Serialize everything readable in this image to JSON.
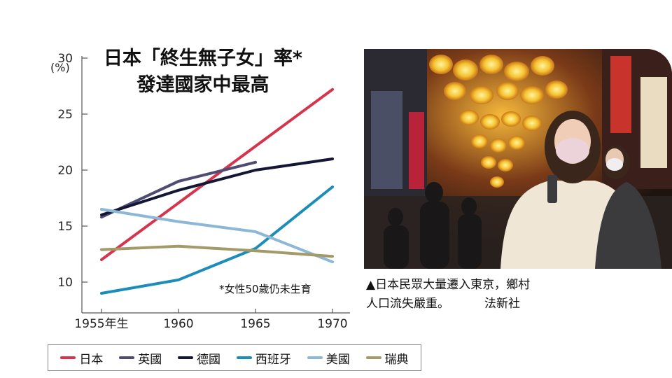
{
  "title": {
    "line1": "日本「終生無子女」率*",
    "line2": "發達國家中最高"
  },
  "unit_label": "(%)",
  "footnote": "*女性50歲仍未生育",
  "photo_caption": {
    "text": "▲日本民眾大量遷入東京，鄉村人口流失嚴重。",
    "line1": "▲日本民眾大量遷入東京，鄉村",
    "line2": "人口流失嚴重。",
    "credit": "法新社"
  },
  "chart_data": {
    "type": "line",
    "title": "日本「終生無子女」率*　發達國家中最高",
    "ylabel": "(%)",
    "xlabel": "",
    "x": [
      1955,
      1960,
      1965,
      1970
    ],
    "x_tick_labels": [
      "1955年生",
      "1960",
      "1965",
      "1970"
    ],
    "xlim": [
      1955,
      1970
    ],
    "ylim": [
      7.5,
      30
    ],
    "y_ticks": [
      10,
      15,
      20,
      25,
      30
    ],
    "grid": false,
    "legend_position": "bottom",
    "series": [
      {
        "name": "日本",
        "color": "#d6334c",
        "points": [
          [
            1955,
            12.0
          ],
          [
            1970,
            27.2
          ]
        ]
      },
      {
        "name": "英國",
        "color": "#4f4b72",
        "points": [
          [
            1955,
            15.8
          ],
          [
            1960,
            19.0
          ],
          [
            1965,
            20.7
          ]
        ]
      },
      {
        "name": "德國",
        "color": "#131634",
        "points": [
          [
            1955,
            16.0
          ],
          [
            1960,
            18.2
          ],
          [
            1965,
            20.0
          ],
          [
            1970,
            21.0
          ]
        ]
      },
      {
        "name": "西班牙",
        "color": "#1c8db8",
        "points": [
          [
            1955,
            9.0
          ],
          [
            1960,
            10.2
          ],
          [
            1965,
            13.0
          ],
          [
            1970,
            18.5
          ]
        ]
      },
      {
        "name": "美國",
        "color": "#8db7d6",
        "points": [
          [
            1955,
            16.5
          ],
          [
            1960,
            15.4
          ],
          [
            1965,
            14.5
          ],
          [
            1970,
            11.8
          ]
        ]
      },
      {
        "name": "瑞典",
        "color": "#a39a6a",
        "points": [
          [
            1955,
            12.9
          ],
          [
            1960,
            13.2
          ],
          [
            1965,
            12.8
          ],
          [
            1970,
            12.3
          ]
        ]
      }
    ]
  }
}
